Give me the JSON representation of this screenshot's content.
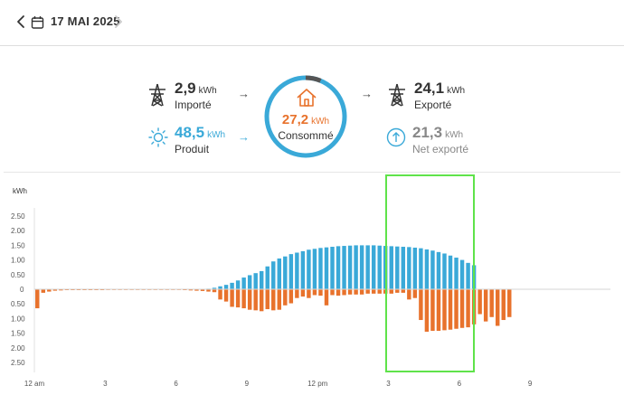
{
  "header": {
    "date": "17 MAI 2025",
    "prev_icon": "chevron-left-icon",
    "calendar_icon": "calendar-icon",
    "next_icon": "chevron-right-icon"
  },
  "summary": {
    "imported": {
      "value": "2,9",
      "unit": "kWh",
      "label": "Importé",
      "icon": "pylon-icon"
    },
    "produced": {
      "value": "48,5",
      "unit": "kWh",
      "label": "Produit",
      "icon": "sun-icon"
    },
    "consumed": {
      "value": "27,2",
      "unit": "kWh",
      "label": "Consommé",
      "icon": "house-icon"
    },
    "exported": {
      "value": "24,1",
      "unit": "kWh",
      "label": "Exporté",
      "icon": "pylon-icon"
    },
    "net_exported": {
      "value": "21,3",
      "unit": "kWh",
      "label": "Net exporté",
      "icon": "arrow-up-circle-icon"
    }
  },
  "colors": {
    "produced": "#3aa9d8",
    "consumed": "#e8722c",
    "highlight": "#5fe34a"
  },
  "chart_data": {
    "type": "bar",
    "ylabel": "kWh",
    "y_ticks_up": [
      "2.50",
      "2.00",
      "1.50",
      "1.00",
      "0.50"
    ],
    "y_zero": "0",
    "y_ticks_down": [
      "0.50",
      "1.00",
      "1.50",
      "2.00",
      "2.50"
    ],
    "ylim": [
      -2.5,
      2.5
    ],
    "x_ticks": [
      "12 am",
      "3",
      "6",
      "9",
      "12 pm",
      "3",
      "6",
      "9"
    ],
    "interval_minutes": 15,
    "series": [
      {
        "values": [
          0,
          0,
          0,
          0,
          0,
          0,
          0,
          0,
          0,
          0,
          0,
          0,
          0,
          0,
          0,
          0,
          0,
          0,
          0,
          0,
          0,
          0,
          0,
          0,
          0,
          0,
          0,
          0,
          0,
          0.02,
          0.05,
          0.1,
          0.15,
          0.22,
          0.3,
          0.4,
          0.48,
          0.55,
          0.62,
          0.78,
          0.95,
          1.05,
          1.12,
          1.2,
          1.25,
          1.3,
          1.35,
          1.38,
          1.41,
          1.43,
          1.45,
          1.47,
          1.48,
          1.49,
          1.5,
          1.5,
          1.5,
          1.5,
          1.49,
          1.48,
          1.47,
          1.46,
          1.45,
          1.44,
          1.42,
          1.4,
          1.36,
          1.32,
          1.27,
          1.22,
          1.15,
          1.08,
          1.0,
          0.9,
          0.82
        ]
      },
      {
        "values": [
          -0.65,
          -0.12,
          -0.08,
          -0.05,
          -0.04,
          -0.03,
          -0.03,
          -0.03,
          -0.03,
          -0.03,
          -0.03,
          -0.03,
          -0.02,
          -0.02,
          -0.02,
          -0.02,
          -0.02,
          -0.02,
          -0.02,
          -0.02,
          -0.02,
          -0.02,
          -0.02,
          -0.02,
          -0.02,
          -0.03,
          -0.04,
          -0.05,
          -0.06,
          -0.08,
          -0.1,
          -0.35,
          -0.42,
          -0.6,
          -0.62,
          -0.65,
          -0.7,
          -0.72,
          -0.75,
          -0.68,
          -0.72,
          -0.7,
          -0.55,
          -0.48,
          -0.3,
          -0.25,
          -0.3,
          -0.2,
          -0.22,
          -0.55,
          -0.2,
          -0.22,
          -0.2,
          -0.18,
          -0.18,
          -0.18,
          -0.15,
          -0.15,
          -0.15,
          -0.15,
          -0.15,
          -0.12,
          -0.12,
          -0.35,
          -0.3,
          -1.05,
          -1.45,
          -1.42,
          -1.42,
          -1.4,
          -1.38,
          -1.35,
          -1.32,
          -1.3,
          -1.2,
          -0.85,
          -1.1,
          -0.95,
          -1.25,
          -1.05,
          -0.95
        ]
      }
    ]
  }
}
